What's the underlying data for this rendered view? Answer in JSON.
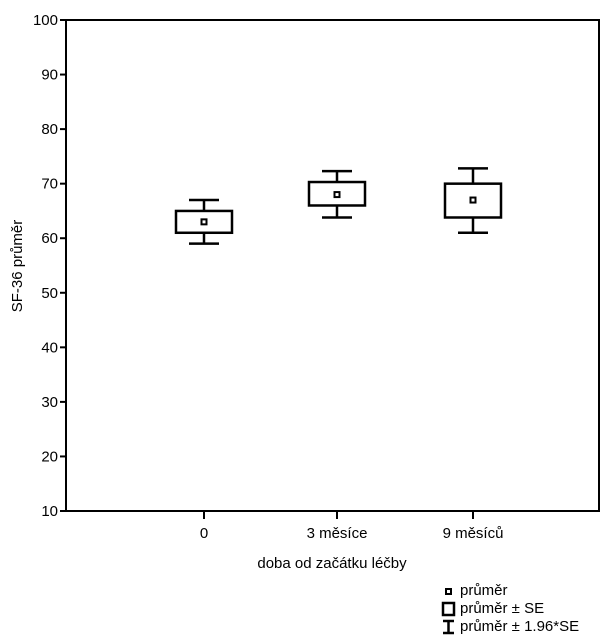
{
  "chart_data": {
    "type": "boxplot",
    "categories": [
      "0",
      "3 měsíce",
      "9 měsíců"
    ],
    "series": [
      {
        "category": "0",
        "mean": 63,
        "se_low": 61,
        "se_high": 65,
        "ci_low": 59,
        "ci_high": 67
      },
      {
        "category": "3 měsíce",
        "mean": 68,
        "se_low": 66,
        "se_high": 70.3,
        "ci_low": 63.8,
        "ci_high": 72.3
      },
      {
        "category": "9 měsíců",
        "mean": 67,
        "se_low": 63.8,
        "se_high": 70,
        "ci_low": 61,
        "ci_high": 72.8
      }
    ],
    "xlabel": "doba od začátku léčby",
    "ylabel": "SF-36 průměr",
    "ylim": [
      10,
      100
    ],
    "yticks": [
      "10",
      "20",
      "30",
      "40",
      "50",
      "60",
      "70",
      "80",
      "90",
      "100"
    ],
    "grid": false,
    "legend": {
      "position": "bottom-right",
      "items": [
        {
          "symbol": "mean-marker",
          "label": "průměr"
        },
        {
          "symbol": "box",
          "label": "průměr ± SE"
        },
        {
          "symbol": "whisker",
          "label": "průměr ± 1.96*SE"
        }
      ]
    }
  }
}
